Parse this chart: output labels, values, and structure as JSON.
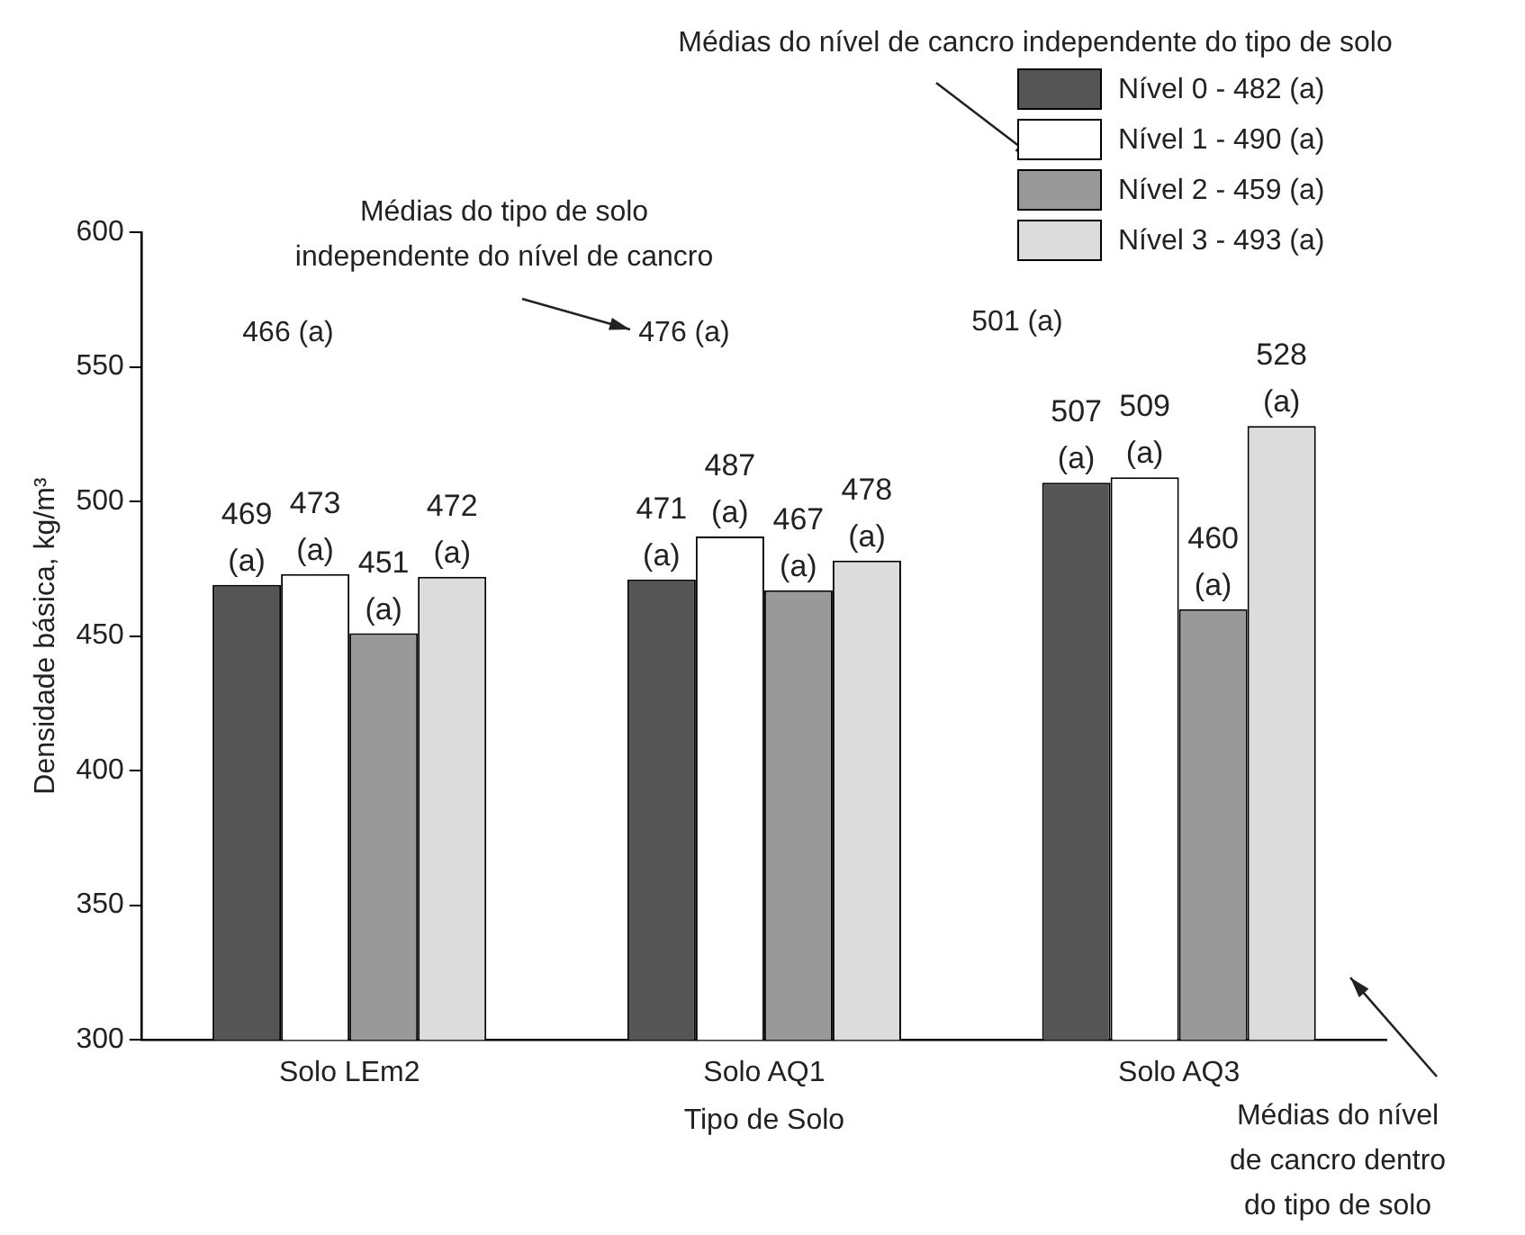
{
  "chart_data": {
    "type": "bar",
    "xlabel": "Tipo de Solo",
    "ylabel": "Densidade básica, kg/m³",
    "categories": [
      "Solo LEm2",
      "Solo AQ1",
      "Solo AQ3"
    ],
    "series": [
      {
        "name": "Nível 0 - 482 (a)",
        "color": "#555555",
        "values": [
          469,
          471,
          507
        ],
        "value_labels": [
          "469 (a)",
          "471 (a)",
          "507 (a)"
        ]
      },
      {
        "name": "Nível 1 - 490 (a)",
        "color": "#ffffff",
        "values": [
          473,
          487,
          509
        ],
        "value_labels": [
          "473 (a)",
          "487 (a)",
          "509 (a)"
        ]
      },
      {
        "name": "Nível 2 - 459 (a)",
        "color": "#999999",
        "values": [
          451,
          467,
          460
        ],
        "value_labels": [
          "451 (a)",
          "467 (a)",
          "460 (a)"
        ]
      },
      {
        "name": "Nível 3 - 493 (a)",
        "color": "#dcdcdc",
        "values": [
          472,
          478,
          528
        ],
        "value_labels": [
          "472 (a)",
          "478 (a)",
          "528 (a)"
        ]
      }
    ],
    "ylim": [
      300,
      600
    ],
    "yticks": [
      300,
      350,
      400,
      450,
      500,
      550,
      600
    ],
    "grid": false,
    "legend": "top right",
    "annotations": [
      "Médias do nível de cancro independente do tipo de solo",
      "Médias do tipo de solo independente do nível de cancro",
      "466 (a)",
      "476 (a)",
      "501 (a)",
      "Médias do nível de cancro dentro do tipo de solo"
    ]
  }
}
